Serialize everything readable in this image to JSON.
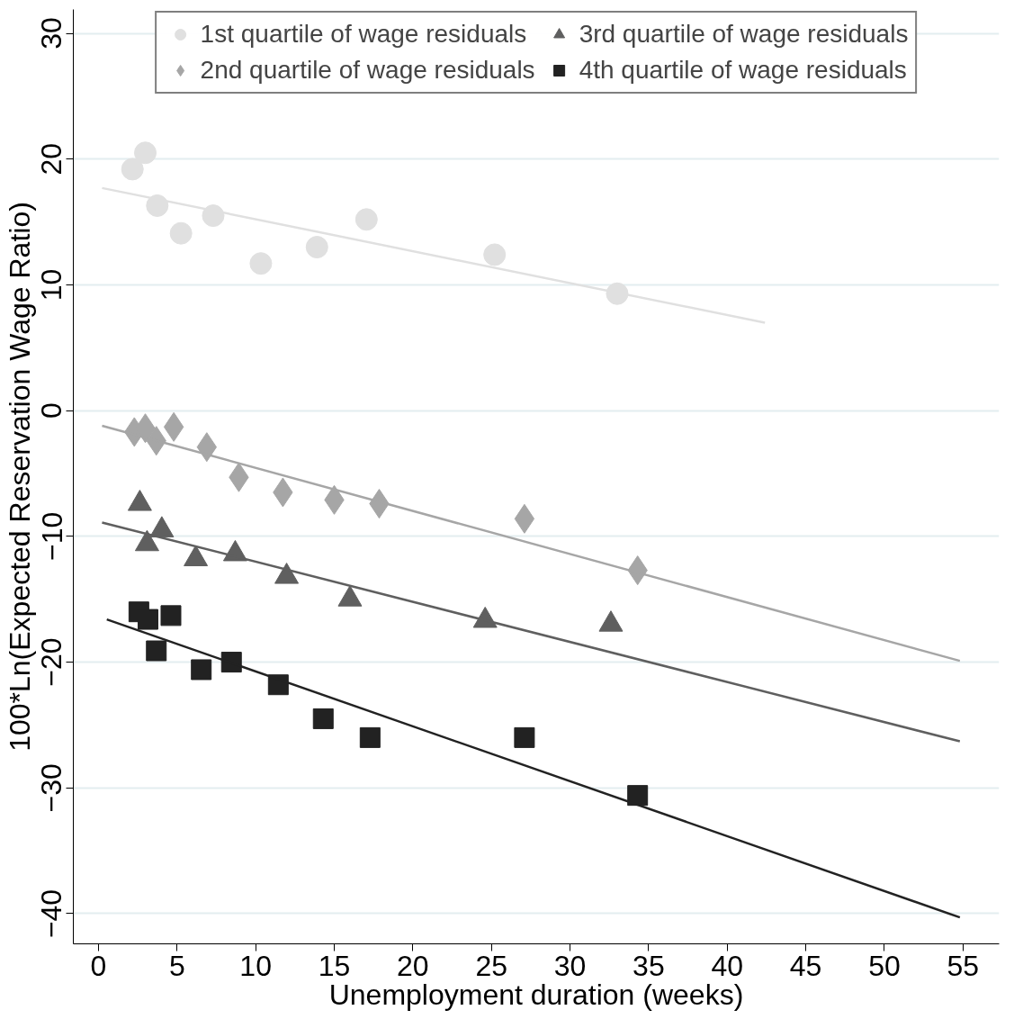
{
  "chart_data": {
    "type": "scatter",
    "xlabel": "Unemployment duration (weeks)",
    "ylabel": "100*Ln(Expected Reservation Wage Ratio)",
    "xlim": [
      -1.6,
      57.3
    ],
    "ylim": [
      -42.4,
      31.9
    ],
    "xticks": [
      0,
      5,
      10,
      15,
      20,
      25,
      30,
      35,
      40,
      45,
      50,
      55
    ],
    "yticks": [
      -40,
      -30,
      -20,
      -10,
      0,
      10,
      20,
      30
    ],
    "grid": "y",
    "legend": "top",
    "series": [
      {
        "name": "1st quartile of wage residuals",
        "color": "#e0e0e0",
        "marker": "circle",
        "x": [
          2.16,
          2.98,
          3.74,
          5.25,
          7.3,
          10.33,
          13.9,
          17.05,
          25.2,
          33.0
        ],
        "values": [
          19.2,
          20.5,
          16.3,
          14.1,
          15.5,
          11.7,
          13.0,
          15.2,
          12.4,
          9.3
        ]
      },
      {
        "name": "2nd quartile of wage residuals",
        "color": "#a6a6a6",
        "marker": "diamond",
        "x": [
          2.28,
          2.98,
          3.68,
          4.79,
          6.89,
          8.93,
          11.73,
          15.0,
          17.86,
          27.1,
          34.3
        ],
        "values": [
          -1.7,
          -1.4,
          -2.4,
          -1.3,
          -2.9,
          -5.3,
          -6.5,
          -7.1,
          -7.4,
          -8.6,
          -12.7
        ]
      },
      {
        "name": "3rd quartile of wage residuals",
        "color": "#5f5f5f",
        "marker": "triangle",
        "x": [
          2.63,
          3.09,
          4.03,
          6.19,
          8.7,
          11.97,
          16.0,
          24.6,
          32.6
        ],
        "values": [
          -7.4,
          -10.6,
          -9.5,
          -11.8,
          -11.4,
          -13.2,
          -15.0,
          -16.7,
          -17.0
        ]
      },
      {
        "name": "4th quartile of wage residuals",
        "color": "#222222",
        "marker": "square",
        "x": [
          2.57,
          3.15,
          4.61,
          3.68,
          6.54,
          8.46,
          11.44,
          14.3,
          17.28,
          27.1,
          34.3
        ],
        "values": [
          -16.0,
          -16.6,
          -16.3,
          -19.1,
          -20.6,
          -20.0,
          -21.8,
          -24.5,
          -26.0,
          -26.0,
          -30.6
        ]
      },
      {
        "type": "line",
        "color": "#e0e0e0",
        "x": [
          0.23,
          42.4
        ],
        "values": [
          17.7,
          6.99
        ]
      },
      {
        "type": "line",
        "color": "#a6a6a6",
        "x": [
          0.23,
          54.8
        ],
        "values": [
          -1.2,
          -19.9
        ]
      },
      {
        "type": "line",
        "color": "#5f5f5f",
        "x": [
          0.23,
          54.8
        ],
        "values": [
          -8.9,
          -26.3
        ]
      },
      {
        "type": "line",
        "color": "#222222",
        "x": [
          0.53,
          54.8
        ],
        "values": [
          -16.6,
          -40.3
        ]
      }
    ]
  }
}
